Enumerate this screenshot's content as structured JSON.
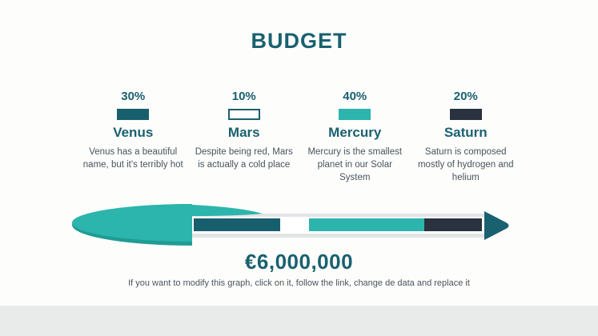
{
  "chart_data": {
    "type": "bar",
    "title": "BUDGET",
    "categories": [
      "Venus",
      "Mars",
      "Mercury",
      "Saturn"
    ],
    "values": [
      30,
      10,
      40,
      20
    ],
    "unit": "percent",
    "colors": [
      "#175F6D",
      "#FFFFFF",
      "#2BB5AC",
      "#29323E"
    ],
    "total_label": "€6,000,000",
    "footnote": "If you want to modify this graph, click on it, follow the link, change de data and replace it",
    "legend": [
      {
        "pct": "30%",
        "name": "Venus",
        "desc": "Venus has a beautiful name, but it's terribly hot",
        "color": "#175F6D",
        "outlined": false
      },
      {
        "pct": "10%",
        "name": "Mars",
        "desc": "Despite being red, Mars is actually a cold place",
        "color": "#FFFFFF",
        "outlined": true
      },
      {
        "pct": "40%",
        "name": "Mercury",
        "desc": "Mercury is the smallest planet in our Solar System",
        "color": "#2BB5AC",
        "outlined": false
      },
      {
        "pct": "20%",
        "name": "Saturn",
        "desc": "Saturn is composed mostly of hydrogen and helium",
        "color": "#29323E",
        "outlined": false
      }
    ]
  }
}
